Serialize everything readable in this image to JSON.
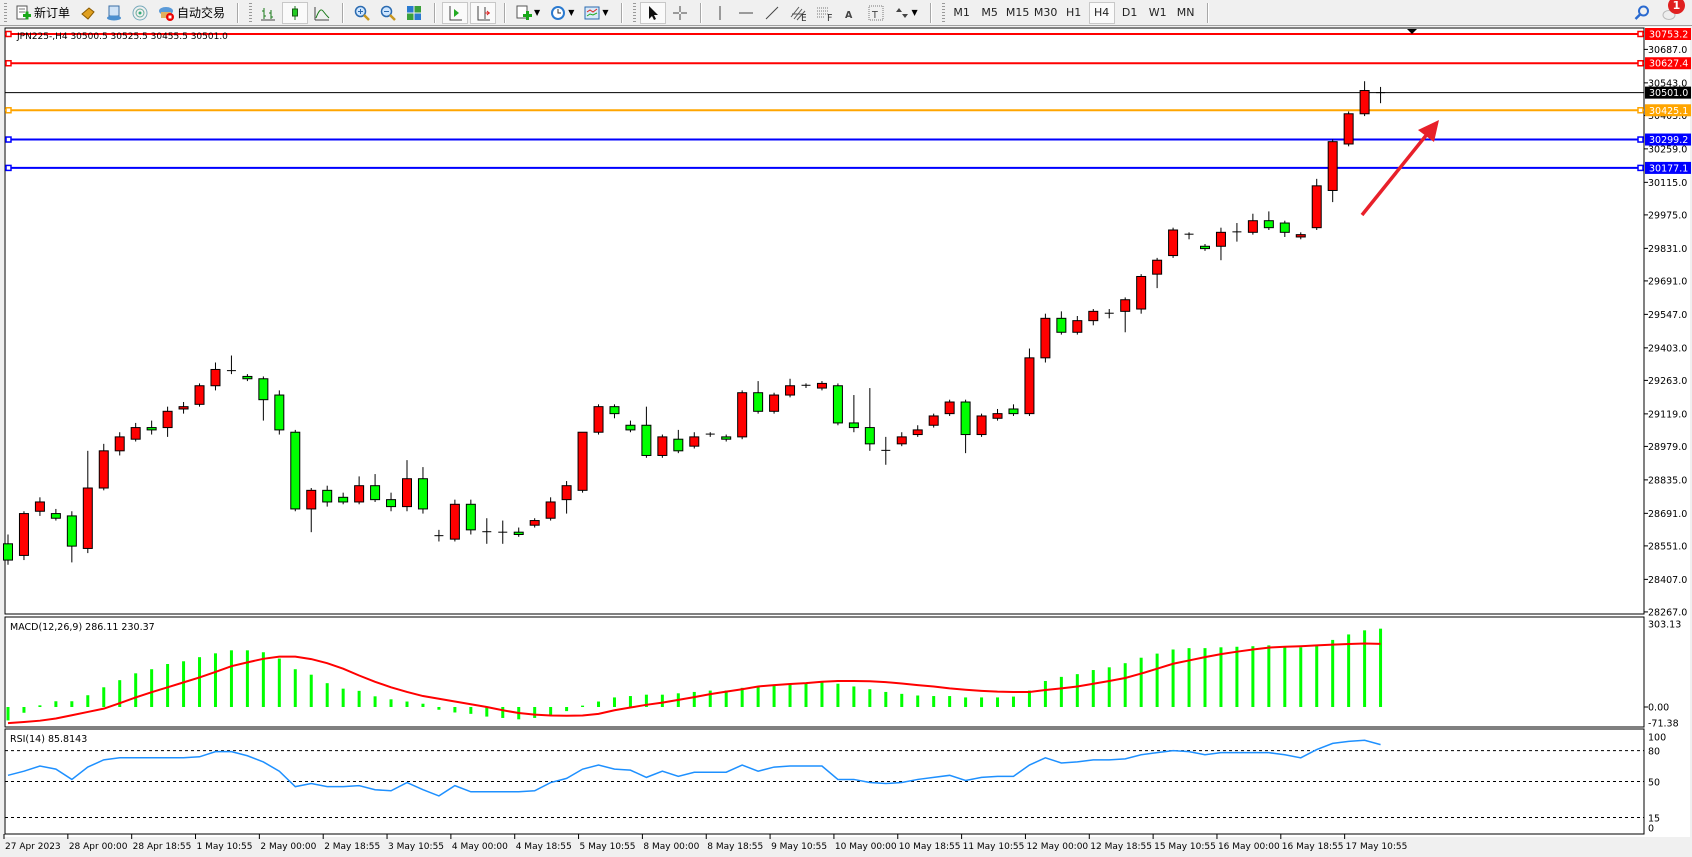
{
  "toolbar": {
    "new_order_label": "新订单",
    "auto_trading_label": "自动交易",
    "icons": [
      "new-order-icon",
      "market-watch-icon",
      "data-window-icon",
      "signals-icon",
      "auto-trading-icon",
      "bar-chart-icon",
      "candlestick-icon",
      "line-chart-icon",
      "zoom-in-icon",
      "zoom-out-icon",
      "tile-windows-icon",
      "auto-scroll-icon",
      "chart-shift-icon",
      "indicators-icon",
      "periods-icon",
      "templates-icon",
      "cursor-icon",
      "crosshair-icon",
      "vertical-line-icon",
      "horizontal-line-icon",
      "trendline-icon",
      "fibo-channel-icon",
      "fibo-retracement-icon",
      "text-icon",
      "text-label-icon",
      "arrows-icon",
      "search-icon",
      "notifications-icon"
    ],
    "timeframes": [
      "M1",
      "M5",
      "M15",
      "M30",
      "H1",
      "H4",
      "D1",
      "W1",
      "MN"
    ],
    "active_timeframe": "H4",
    "notification_count": "1"
  },
  "chart": {
    "header": "JPN225-,H4  30500.5 30525.5 30455.5 30501.0",
    "colors": {
      "bull_body": "#ff0000",
      "bear_body": "#00ff00",
      "outline": "#000000",
      "macd_hist": "#00ff00",
      "signal": "#ff0000",
      "rsi": "#1e90ff",
      "arrow": "#e8202a"
    },
    "price_ticks": [
      "30687.0",
      "30543.0",
      "30403.0",
      "30259.0",
      "30115.0",
      "29975.0",
      "29831.0",
      "29691.0",
      "29547.0",
      "29403.0",
      "29263.0",
      "29119.0",
      "28979.0",
      "28835.0",
      "28691.0",
      "28551.0",
      "28407.0",
      "28267.0"
    ],
    "levels": [
      {
        "price": "30753.2",
        "color": "#ff0000"
      },
      {
        "price": "30627.4",
        "color": "#ff0000"
      },
      {
        "price": "30501.0",
        "color": "#000000"
      },
      {
        "price": "30425.1",
        "color": "#ffa500"
      },
      {
        "price": "30299.2",
        "color": "#0000ff"
      },
      {
        "price": "30177.1",
        "color": "#0000ff"
      }
    ],
    "time_labels": [
      "27 Apr 2023",
      "28 Apr 00:00",
      "28 Apr 18:55",
      "1 May 10:55",
      "2 May 00:00",
      "2 May 18:55",
      "3 May 10:55",
      "4 May 00:00",
      "4 May 18:55",
      "5 May 10:55",
      "8 May 00:00",
      "8 May 18:55",
      "9 May 10:55",
      "10 May 00:00",
      "10 May 18:55",
      "11 May 10:55",
      "12 May 00:00",
      "12 May 18:55",
      "15 May 10:55",
      "16 May 00:00",
      "16 May 18:55",
      "17 May 10:55"
    ],
    "macd": {
      "label": "MACD(12,26,9) 286.11 230.37",
      "ticks": [
        "303.13",
        "0.00",
        "-71.38"
      ]
    },
    "rsi": {
      "label": "RSI(14) 85.8143",
      "ticks": [
        "100",
        "80",
        "50",
        "15",
        "0"
      ],
      "levels": [
        80,
        50,
        15
      ]
    }
  },
  "chart_data": {
    "type": "candlestick",
    "symbol": "JPN225-",
    "timeframe": "H4",
    "ylim": [
      28258,
      30779
    ],
    "ohlc": [
      [
        28560,
        28600,
        28470,
        28490
      ],
      [
        28510,
        28700,
        28490,
        28690
      ],
      [
        28700,
        28760,
        28680,
        28740
      ],
      [
        28690,
        28710,
        28660,
        28670
      ],
      [
        28680,
        28700,
        28480,
        28550
      ],
      [
        28540,
        28960,
        28520,
        28800
      ],
      [
        28800,
        28990,
        28790,
        28960
      ],
      [
        28960,
        29040,
        28940,
        29020
      ],
      [
        29010,
        29080,
        29000,
        29060
      ],
      [
        29060,
        29090,
        29030,
        29050
      ],
      [
        29060,
        29150,
        29020,
        29130
      ],
      [
        29140,
        29170,
        29120,
        29150
      ],
      [
        29160,
        29250,
        29150,
        29240
      ],
      [
        29240,
        29340,
        29220,
        29310
      ],
      [
        29300,
        29370,
        29290,
        29305
      ],
      [
        29280,
        29290,
        29260,
        29270
      ],
      [
        29270,
        29280,
        29090,
        29180
      ],
      [
        29200,
        29220,
        29030,
        29050
      ],
      [
        29040,
        29050,
        28700,
        28710
      ],
      [
        28710,
        28800,
        28610,
        28790
      ],
      [
        28790,
        28810,
        28720,
        28740
      ],
      [
        28760,
        28780,
        28730,
        28740
      ],
      [
        28740,
        28850,
        28730,
        28810
      ],
      [
        28810,
        28860,
        28740,
        28750
      ],
      [
        28750,
        28780,
        28700,
        28720
      ],
      [
        28720,
        28920,
        28700,
        28840
      ],
      [
        28840,
        28890,
        28690,
        28710
      ],
      [
        28590,
        28620,
        28570,
        28595
      ],
      [
        28580,
        28750,
        28570,
        28730
      ],
      [
        28730,
        28750,
        28600,
        28620
      ],
      [
        28610,
        28670,
        28560,
        28612
      ],
      [
        28610,
        28660,
        28560,
        28608
      ],
      [
        28610,
        28630,
        28590,
        28600
      ],
      [
        28640,
        28670,
        28630,
        28660
      ],
      [
        28670,
        28760,
        28660,
        28740
      ],
      [
        28750,
        28830,
        28690,
        28810
      ],
      [
        28790,
        29040,
        28780,
        29040
      ],
      [
        29040,
        29160,
        29030,
        29150
      ],
      [
        29150,
        29160,
        29100,
        29120
      ],
      [
        29070,
        29090,
        29040,
        29050
      ],
      [
        29070,
        29150,
        28930,
        28940
      ],
      [
        28940,
        29030,
        28930,
        29020
      ],
      [
        29010,
        29050,
        28950,
        28960
      ],
      [
        28980,
        29040,
        28970,
        29020
      ],
      [
        29030,
        29040,
        29020,
        29032
      ],
      [
        29020,
        29030,
        29000,
        29010
      ],
      [
        29020,
        29220,
        29010,
        29210
      ],
      [
        29210,
        29260,
        29120,
        29130
      ],
      [
        29130,
        29210,
        29120,
        29200
      ],
      [
        29200,
        29270,
        29190,
        29240
      ],
      [
        29240,
        29250,
        29230,
        29242
      ],
      [
        29230,
        29260,
        29220,
        29250
      ],
      [
        29240,
        29250,
        29070,
        29080
      ],
      [
        29080,
        29200,
        29040,
        29060
      ],
      [
        29060,
        29230,
        28960,
        28990
      ],
      [
        28960,
        29020,
        28900,
        28962
      ],
      [
        28990,
        29040,
        28980,
        29020
      ],
      [
        29030,
        29070,
        29020,
        29050
      ],
      [
        29070,
        29120,
        29060,
        29110
      ],
      [
        29120,
        29180,
        29110,
        29170
      ],
      [
        29170,
        29180,
        28950,
        29030
      ],
      [
        29030,
        29120,
        29020,
        29110
      ],
      [
        29100,
        29140,
        29090,
        29120
      ],
      [
        29140,
        29160,
        29110,
        29120
      ],
      [
        29120,
        29400,
        29110,
        29360
      ],
      [
        29360,
        29550,
        29340,
        29530
      ],
      [
        29530,
        29560,
        29460,
        29470
      ],
      [
        29470,
        29540,
        29460,
        29520
      ],
      [
        29520,
        29570,
        29500,
        29560
      ],
      [
        29550,
        29570,
        29530,
        29552
      ],
      [
        29560,
        29620,
        29470,
        29610
      ],
      [
        29570,
        29720,
        29550,
        29710
      ],
      [
        29720,
        29790,
        29660,
        29780
      ],
      [
        29800,
        29920,
        29790,
        29910
      ],
      [
        29890,
        29900,
        29870,
        29892
      ],
      [
        29840,
        29850,
        29820,
        29830
      ],
      [
        29840,
        29920,
        29780,
        29900
      ],
      [
        29900,
        29940,
        29860,
        29902
      ],
      [
        29900,
        29980,
        29890,
        29950
      ],
      [
        29950,
        29990,
        29910,
        29920
      ],
      [
        29940,
        29950,
        29880,
        29900
      ],
      [
        29880,
        29900,
        29870,
        29890
      ],
      [
        29920,
        30130,
        29910,
        30100
      ],
      [
        30080,
        30300,
        30030,
        30290
      ],
      [
        30280,
        30420,
        30270,
        30410
      ],
      [
        30410,
        30550,
        30400,
        30510
      ],
      [
        30500.5,
        30525.5,
        30455.5,
        30501.0
      ]
    ],
    "macd_hist": [
      -49,
      -21,
      6,
      21,
      21,
      43,
      72,
      98,
      123,
      138,
      157,
      167,
      182,
      196,
      207,
      207,
      200,
      177,
      138,
      118,
      87,
      67,
      59,
      39,
      28,
      20,
      12,
      -10,
      -20,
      -25,
      -35,
      -40,
      -45,
      -40,
      -30,
      -15,
      5,
      20,
      35,
      40,
      45,
      45,
      50,
      55,
      60,
      60,
      70,
      75,
      78,
      82,
      88,
      92,
      85,
      75,
      65,
      55,
      48,
      42,
      40,
      40,
      35,
      35,
      35,
      38,
      60,
      95,
      110,
      120,
      135,
      145,
      160,
      180,
      195,
      210,
      215,
      215,
      218,
      220,
      222,
      225,
      222,
      218,
      225,
      245,
      265,
      280,
      286.11
    ],
    "macd_signal": [
      -59,
      -55,
      -50,
      -42,
      -30,
      -18,
      -6,
      14,
      35,
      54,
      72,
      90,
      108,
      128,
      149,
      163,
      176,
      184,
      184,
      175,
      160,
      140,
      115,
      92,
      72,
      55,
      40,
      30,
      20,
      10,
      0,
      -12,
      -22,
      -28,
      -31,
      -32,
      -31,
      -25,
      -12,
      -2,
      8,
      16,
      26,
      36,
      47,
      56,
      65,
      75,
      80,
      84,
      87,
      92,
      95,
      95,
      94,
      91,
      86,
      80,
      75,
      68,
      63,
      59,
      56,
      55,
      55,
      62,
      68,
      75,
      85,
      95,
      106,
      122,
      140,
      158,
      170,
      182,
      193,
      202,
      210,
      217,
      220,
      222,
      225,
      228,
      230,
      232,
      230.37
    ],
    "macd_ylim": [
      -71.38,
      303.13
    ],
    "rsi": [
      56,
      60,
      65,
      62,
      52,
      64,
      71,
      73,
      73,
      73,
      73,
      73,
      74,
      79,
      79,
      75,
      69,
      60,
      45,
      48,
      45,
      45,
      46,
      42,
      41,
      49,
      42,
      36,
      46,
      40,
      40,
      40,
      40,
      41,
      49,
      53,
      62,
      66,
      62,
      61,
      54,
      60,
      55,
      59,
      59,
      59,
      66,
      60,
      64,
      65,
      65,
      65,
      52,
      52,
      49,
      48,
      49,
      52,
      54,
      56,
      51,
      54,
      55,
      55,
      66,
      73,
      68,
      69,
      71,
      71,
      72,
      76,
      78,
      80,
      79,
      76,
      78,
      78,
      78,
      78,
      76,
      73,
      81,
      87,
      89,
      90,
      85.81
    ],
    "rsi_ylim": [
      0,
      100
    ],
    "annotation": "red-arrow-up"
  }
}
